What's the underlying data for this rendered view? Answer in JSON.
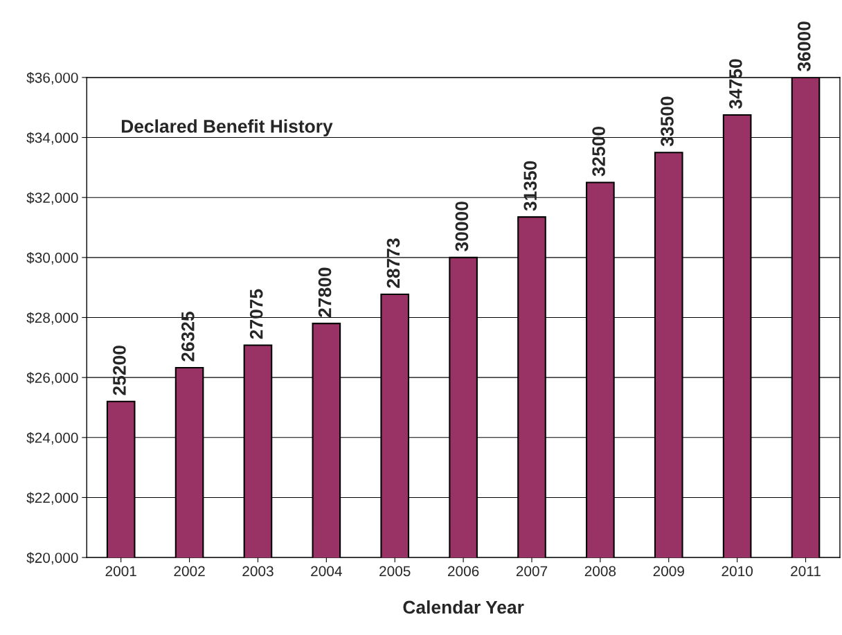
{
  "chart_data": {
    "type": "bar",
    "title": "Declared Benefit History",
    "xlabel": "Calendar Year",
    "categories": [
      "2001",
      "2002",
      "2003",
      "2004",
      "2005",
      "2006",
      "2007",
      "2008",
      "2009",
      "2010",
      "2011"
    ],
    "values": [
      25200,
      26325,
      27075,
      27800,
      28773,
      30000,
      31350,
      32500,
      33500,
      34750,
      36000
    ],
    "color": "#993366",
    "ylim": [
      20000,
      36000
    ],
    "yticks": [
      {
        "value": 20000,
        "label": "$20,000"
      },
      {
        "value": 22000,
        "label": "$22,000"
      },
      {
        "value": 24000,
        "label": "$24,000"
      },
      {
        "value": 26000,
        "label": "$26,000"
      },
      {
        "value": 28000,
        "label": "$28,000"
      },
      {
        "value": 30000,
        "label": "$30,000"
      },
      {
        "value": 32000,
        "label": "$32,000"
      },
      {
        "value": 34000,
        "label": "$34,000"
      },
      {
        "value": 36000,
        "label": "$36,000"
      }
    ],
    "grid": "y",
    "data_labels": true
  }
}
